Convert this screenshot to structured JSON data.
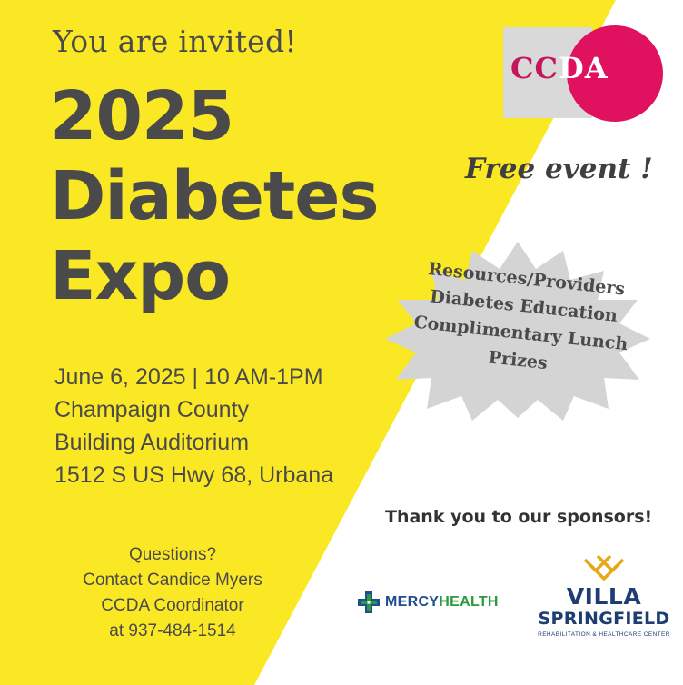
{
  "colors": {
    "yellow_bg": "#fbe824",
    "text_gray": "#4a4a4a",
    "ccda_pink": "#e0115f",
    "ccda_gray": "#d9d9d9",
    "starburst_gray": "#d4d4d4",
    "mercy_blue": "#1d4e8f",
    "mercy_green": "#2a9a3c",
    "villa_navy": "#1f3d73",
    "villa_gold": "#e6a817"
  },
  "header": {
    "invited": "You are invited!",
    "title_lines": [
      "2025",
      "Diabetes",
      "Expo"
    ]
  },
  "event": {
    "date_time": "June 6, 2025 | 10 AM-1PM",
    "venue_line1": "Champaign County",
    "venue_line2": "Building Auditorium",
    "address": "1512  S US Hwy 68, Urbana"
  },
  "contact": {
    "line1": "Questions?",
    "line2": "Contact Candice Myers",
    "line3": "CCDA Coordinator",
    "line4": "at 937-484-1514"
  },
  "logo": {
    "text_dark": "CC",
    "text_light": "DA"
  },
  "free_event": "Free event !",
  "starburst": {
    "items": [
      "Resources/Providers",
      "Diabetes Education",
      "Complimentary Lunch",
      "Prizes"
    ]
  },
  "sponsors": {
    "heading": "Thank you to our sponsors!",
    "mercy": {
      "part1": "MERCY",
      "part2": "HEALTH",
      "icon": "mercy-cross-icon"
    },
    "villa": {
      "line1": "VILLA",
      "line2": "SPRINGFIELD",
      "tagline": "REHABILITATION & HEALTHCARE CENTER",
      "icon": "villa-crest-icon"
    }
  }
}
